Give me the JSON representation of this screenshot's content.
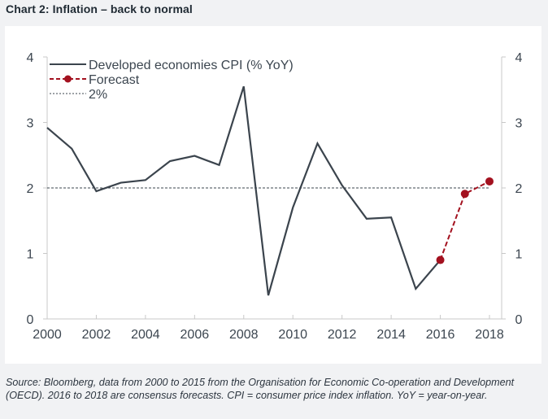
{
  "page": {
    "title": "Chart 2: Inflation – back to normal",
    "source_note": "Source: Bloomberg, data from 2000 to 2015 from the Organisation for Economic Co-operation and Development (OECD). 2016 to 2018 are consensus forecasts. CPI = consumer price index inflation. YoY = year-on-year."
  },
  "chart_data": {
    "type": "line",
    "title": "Chart 2: Inflation – back to normal",
    "xlabel": "",
    "ylabel": "",
    "xlim": [
      2000,
      2018
    ],
    "ylim": [
      0,
      4
    ],
    "x_ticks": [
      "2000",
      "2002",
      "2004",
      "2006",
      "2008",
      "2010",
      "2012",
      "2014",
      "2016",
      "2018"
    ],
    "x_tick_values": [
      2000,
      2002,
      2004,
      2006,
      2008,
      2010,
      2012,
      2014,
      2016,
      2018
    ],
    "y_ticks_left": [
      "0",
      "1",
      "2",
      "3",
      "4"
    ],
    "y_ticks_right": [
      "0",
      "1",
      "2",
      "3",
      "4"
    ],
    "y_tick_values": [
      0,
      1,
      2,
      3,
      4
    ],
    "grid": false,
    "legend_position": "top-left",
    "series": [
      {
        "name": "Developed economies CPI (% YoY)",
        "style": "solid",
        "color": "#3b444d",
        "x": [
          2000,
          2001,
          2002,
          2003,
          2004,
          2005,
          2006,
          2007,
          2008,
          2009,
          2010,
          2011,
          2012,
          2013,
          2014,
          2015,
          2016
        ],
        "values": [
          2.92,
          2.6,
          1.95,
          2.08,
          2.12,
          2.41,
          2.49,
          2.35,
          3.55,
          0.36,
          1.7,
          2.68,
          2.04,
          1.53,
          1.55,
          0.46,
          0.9
        ]
      },
      {
        "name": "Forecast",
        "style": "dashed-markers",
        "color": "#a3111f",
        "x": [
          2016,
          2017,
          2018
        ],
        "values": [
          0.9,
          1.91,
          2.1
        ]
      },
      {
        "name": "2%",
        "style": "dotted",
        "color": "#3b444d",
        "x": [
          2000,
          2018
        ],
        "values": [
          2,
          2
        ]
      }
    ]
  }
}
